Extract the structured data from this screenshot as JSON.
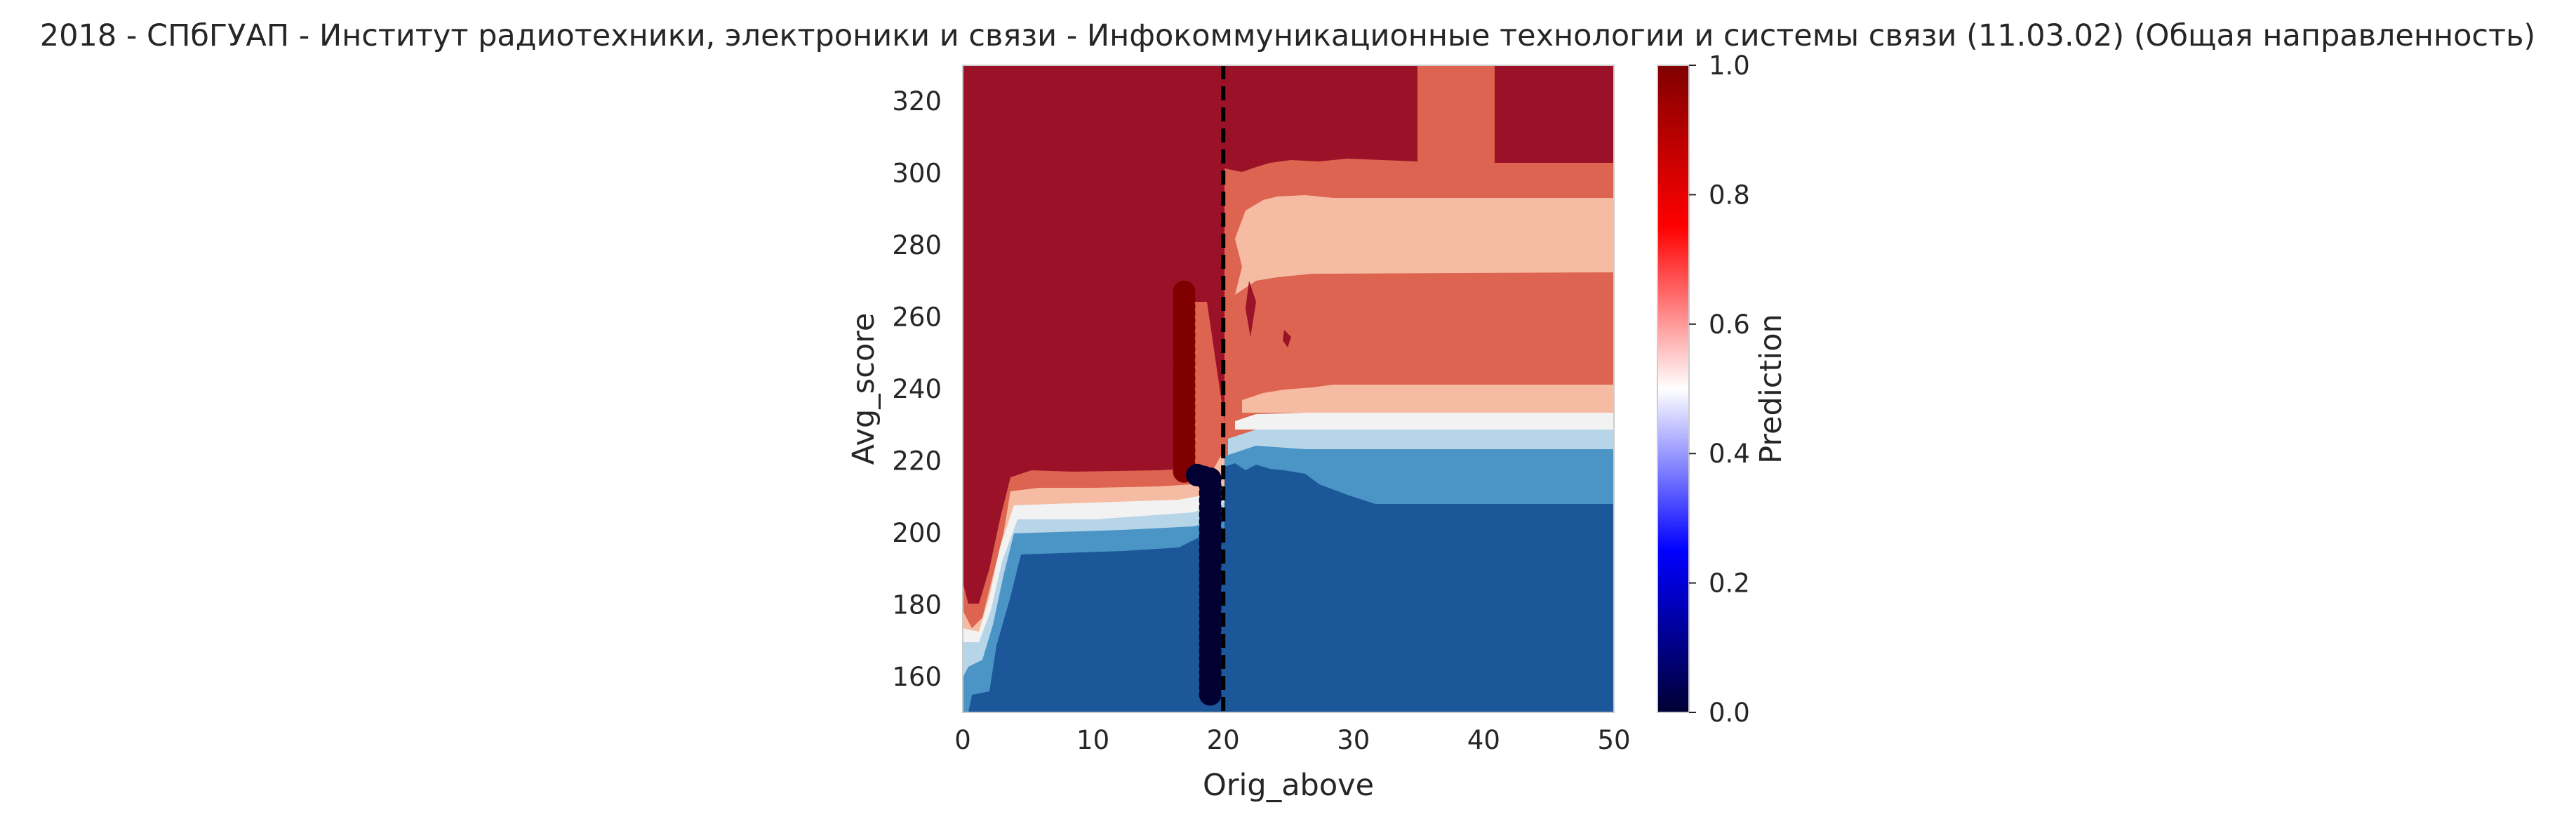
{
  "chart_data": {
    "type": "heatmap",
    "title": "2018 - СПбГУАП - Институт радиотехники, электроники и связи - Инфокоммуникационные технологии и системы связи (11.03.02) (Общая направленность)",
    "xlabel": "Orig_above",
    "ylabel": "Avg_score",
    "xlim": [
      0,
      50
    ],
    "ylim": [
      150,
      330
    ],
    "xticks": [
      0,
      10,
      20,
      30,
      40,
      50
    ],
    "yticks": [
      160,
      180,
      200,
      220,
      240,
      260,
      280,
      300,
      320
    ],
    "xtick_labels": [
      "0",
      "10",
      "20",
      "30",
      "40",
      "50"
    ],
    "ytick_labels": [
      "160",
      "180",
      "200",
      "220",
      "240",
      "260",
      "280",
      "300",
      "320"
    ],
    "colorbar": {
      "label": "Prediction",
      "range": [
        0.0,
        1.0
      ],
      "ticks": [
        0.0,
        0.2,
        0.4,
        0.6,
        0.8,
        1.0
      ],
      "tick_labels": [
        "0.0",
        "0.2",
        "0.4",
        "0.6",
        "0.8",
        "1.0"
      ],
      "colormap": "seismic"
    },
    "vline_x": 20,
    "vline_style": "dashed",
    "grid": false,
    "contour_colors": {
      "high": "#9b1127",
      "upper_mid": "#dc6450",
      "light_red": "#f6bca3",
      "neutral": "#f2f2f2",
      "light_blue": "#b6d5e8",
      "mid_blue": "#4b95c6",
      "low": "#1c5799"
    },
    "scatter_points_red": {
      "x": [
        17,
        17,
        17,
        17,
        17,
        17,
        17,
        17,
        17,
        17,
        17,
        17,
        17,
        17,
        17,
        17,
        17,
        17,
        17,
        17,
        17,
        17,
        17,
        17,
        17,
        17
      ],
      "y": [
        267,
        265,
        263,
        261,
        259,
        257,
        255,
        253,
        251,
        249,
        247,
        245,
        243,
        241,
        239,
        237,
        235,
        233,
        231,
        229,
        227,
        225,
        223,
        221,
        219,
        217
      ],
      "prediction": 1.0
    },
    "scatter_points_blue": {
      "x": [
        18,
        18.5,
        19,
        19,
        19,
        19,
        19,
        19,
        19,
        19,
        19,
        19,
        19,
        19,
        19,
        19,
        19,
        19,
        19,
        19,
        19,
        19,
        19,
        19,
        19,
        19,
        19,
        19,
        19,
        19,
        19,
        19,
        19
      ],
      "y": [
        216,
        215.5,
        215,
        213,
        211,
        209,
        207,
        205,
        203,
        201,
        199,
        197,
        195,
        193,
        191,
        189,
        187,
        185,
        183,
        181,
        179,
        177,
        175,
        173,
        171,
        169,
        167,
        165,
        163,
        161,
        159,
        157,
        155
      ],
      "prediction": 0.0
    }
  }
}
